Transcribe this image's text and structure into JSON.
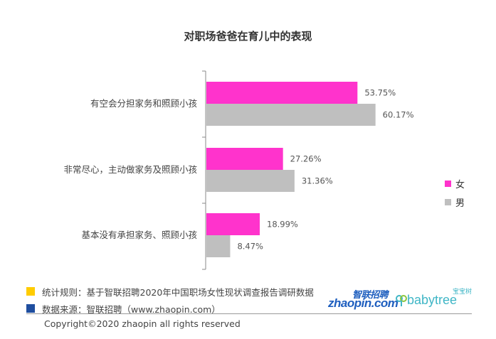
{
  "chart_data": {
    "type": "bar",
    "orientation": "horizontal",
    "title": "对职场爸爸在育儿中的表现",
    "categories": [
      "有空会分担家务和照顾小孩",
      "非常尽心，主动做家务及照顾小孩",
      "基本没有承担家务、照顾小孩"
    ],
    "series": [
      {
        "name": "女",
        "color": "#ff33cc",
        "values": [
          53.75,
          27.26,
          18.99
        ],
        "labels": [
          "53.75%",
          "27.26%",
          "18.99%"
        ]
      },
      {
        "name": "男",
        "color": "#bfbfbf",
        "values": [
          60.17,
          31.36,
          8.47
        ],
        "labels": [
          "60.17%",
          "31.36%",
          "8.47%"
        ]
      }
    ],
    "xlim": [
      0,
      100
    ],
    "grid": false,
    "legend_position": "right"
  },
  "notes": [
    {
      "text": "统计规则：基于智联招聘2020年中国职场女性现状调查报告调研数据",
      "color": "#ffcc00"
    },
    {
      "text": "数据来源：智联招聘（www.zhaopin.com）",
      "color": "#1f4e9f"
    }
  ],
  "copyright": "Copyright©2020 zhaopin all rights reserved",
  "logos": {
    "zhaopin_cn": "智联招聘",
    "zhaopin_en": "zhaopin.com",
    "babytree_cn": "宝宝树",
    "babytree_en": "babytree"
  }
}
